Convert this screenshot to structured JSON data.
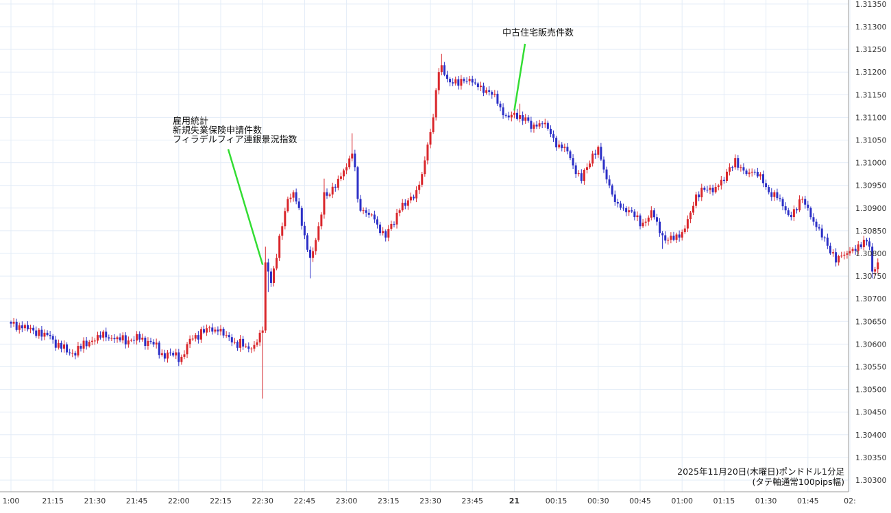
{
  "chart_data": {
    "type": "candlestick",
    "colors": {
      "up": "#d9262b",
      "down": "#2b2fc6",
      "grid": "#e3ecf7",
      "annotation_line": "#33dd33"
    },
    "y_axis": {
      "ylim": [
        1.3027,
        1.31335
      ],
      "ticks": [
        "1.30300",
        "1.30350",
        "1.30400",
        "1.30450",
        "1.30500",
        "1.30550",
        "1.30600",
        "1.30650",
        "1.30700",
        "1.30750",
        "1.30800",
        "1.30850",
        "1.30900",
        "1.30950",
        "1.31000",
        "1.31050",
        "1.31100",
        "1.31150",
        "1.31200",
        "1.31250",
        "1.31300",
        "1.31350"
      ]
    },
    "x_axis": {
      "ticks": [
        {
          "label": "1:00",
          "minute": 0
        },
        {
          "label": "21:15",
          "minute": 15
        },
        {
          "label": "21:30",
          "minute": 30
        },
        {
          "label": "21:45",
          "minute": 45
        },
        {
          "label": "22:00",
          "minute": 60
        },
        {
          "label": "22:15",
          "minute": 75
        },
        {
          "label": "22:30",
          "minute": 90
        },
        {
          "label": "22:45",
          "minute": 105
        },
        {
          "label": "23:00",
          "minute": 120
        },
        {
          "label": "23:15",
          "minute": 135
        },
        {
          "label": "23:30",
          "minute": 150
        },
        {
          "label": "23:45",
          "minute": 165
        },
        {
          "label": "21",
          "minute": 180,
          "bold": true
        },
        {
          "label": "00:15",
          "minute": 195
        },
        {
          "label": "00:30",
          "minute": 210
        },
        {
          "label": "00:45",
          "minute": 225
        },
        {
          "label": "01:00",
          "minute": 240
        },
        {
          "label": "01:15",
          "minute": 255
        },
        {
          "label": "01:30",
          "minute": 270
        },
        {
          "label": "01:45",
          "minute": 285
        },
        {
          "label": "02:",
          "minute": 300
        }
      ]
    },
    "annotations": [
      {
        "lines": [
          "雇用統計",
          "新規失業保険申請件数",
          "フィラデルフィア連銀景況指数"
        ],
        "minute": 90,
        "price": 1.30775
      },
      {
        "lines": [
          "中古住宅販売件数"
        ],
        "minute": 180,
        "price": 1.31115
      }
    ],
    "caption": {
      "line1": "2025年11月20日(木曜日)ポンドドル1分足",
      "line2": "(タテ軸通常100pips幅)"
    },
    "anchors": [
      [
        0,
        1.30645
      ],
      [
        4,
        1.30635
      ],
      [
        8,
        1.3063
      ],
      [
        12,
        1.30625
      ],
      [
        15,
        1.3061
      ],
      [
        18,
        1.3059
      ],
      [
        21,
        1.3058
      ],
      [
        25,
        1.3059
      ],
      [
        28,
        1.30605
      ],
      [
        31,
        1.3062
      ],
      [
        34,
        1.30615
      ],
      [
        38,
        1.30615
      ],
      [
        42,
        1.30608
      ],
      [
        46,
        1.3061
      ],
      [
        50,
        1.30605
      ],
      [
        54,
        1.3058
      ],
      [
        58,
        1.30575
      ],
      [
        61,
        1.30572
      ],
      [
        63,
        1.306
      ],
      [
        66,
        1.3062
      ],
      [
        70,
        1.30635
      ],
      [
        74,
        1.30628
      ],
      [
        77,
        1.3062
      ],
      [
        80,
        1.30605
      ],
      [
        84,
        1.30595
      ],
      [
        86,
        1.3059
      ],
      [
        87,
        1.30598
      ],
      [
        89,
        1.30625
      ],
      [
        90,
        1.3063
      ],
      [
        91,
        1.3078
      ],
      [
        92,
        1.3076
      ],
      [
        93,
        1.30735
      ],
      [
        95,
        1.3079
      ],
      [
        97,
        1.3086
      ],
      [
        99,
        1.3092
      ],
      [
        101,
        1.30935
      ],
      [
        103,
        1.309
      ],
      [
        105,
        1.3084
      ],
      [
        107,
        1.3079
      ],
      [
        108,
        1.30805
      ],
      [
        110,
        1.3086
      ],
      [
        112,
        1.30935
      ],
      [
        114,
        1.3093
      ],
      [
        116,
        1.30945
      ],
      [
        118,
        1.3097
      ],
      [
        120,
        1.3099
      ],
      [
        122,
        1.3102
      ],
      [
        123,
        1.3099
      ],
      [
        124,
        1.3092
      ],
      [
        126,
        1.30895
      ],
      [
        128,
        1.30885
      ],
      [
        130,
        1.30875
      ],
      [
        132,
        1.30845
      ],
      [
        134,
        1.30835
      ],
      [
        136,
        1.30865
      ],
      [
        139,
        1.30895
      ],
      [
        141,
        1.30905
      ],
      [
        143,
        1.30925
      ],
      [
        145,
        1.3094
      ],
      [
        147,
        1.30975
      ],
      [
        149,
        1.3104
      ],
      [
        151,
        1.311
      ],
      [
        152,
        1.3116
      ],
      [
        153,
        1.312
      ],
      [
        154,
        1.31215
      ],
      [
        156,
        1.31185
      ],
      [
        158,
        1.31175
      ],
      [
        160,
        1.3117
      ],
      [
        162,
        1.3118
      ],
      [
        164,
        1.31185
      ],
      [
        166,
        1.31175
      ],
      [
        168,
        1.3117
      ],
      [
        170,
        1.3116
      ],
      [
        172,
        1.3115
      ],
      [
        174,
        1.3113
      ],
      [
        176,
        1.31105
      ],
      [
        178,
        1.311
      ],
      [
        180,
        1.3111
      ],
      [
        182,
        1.31105
      ],
      [
        184,
        1.311
      ],
      [
        186,
        1.31075
      ],
      [
        188,
        1.3108
      ],
      [
        190,
        1.31085
      ],
      [
        192,
        1.31075
      ],
      [
        194,
        1.31055
      ],
      [
        196,
        1.3104
      ],
      [
        198,
        1.31035
      ],
      [
        200,
        1.3101
      ],
      [
        202,
        1.30975
      ],
      [
        204,
        1.3096
      ],
      [
        206,
        1.3099
      ],
      [
        208,
        1.3102
      ],
      [
        210,
        1.31035
      ],
      [
        212,
        1.30985
      ],
      [
        214,
        1.3095
      ],
      [
        215,
        1.3093
      ],
      [
        217,
        1.3091
      ],
      [
        219,
        1.309
      ],
      [
        221,
        1.30895
      ],
      [
        223,
        1.3088
      ],
      [
        225,
        1.3086
      ],
      [
        227,
        1.3087
      ],
      [
        229,
        1.30895
      ],
      [
        231,
        1.3087
      ],
      [
        233,
        1.3084
      ],
      [
        235,
        1.3083
      ],
      [
        237,
        1.3083
      ],
      [
        239,
        1.30835
      ],
      [
        241,
        1.30855
      ],
      [
        243,
        1.3089
      ],
      [
        245,
        1.3093
      ],
      [
        247,
        1.30945
      ],
      [
        249,
        1.3094
      ],
      [
        251,
        1.30935
      ],
      [
        253,
        1.3095
      ],
      [
        255,
        1.3096
      ],
      [
        257,
        1.3099
      ],
      [
        259,
        1.3101
      ],
      [
        261,
        1.3099
      ],
      [
        263,
        1.30975
      ],
      [
        265,
        1.3098
      ],
      [
        267,
        1.3097
      ],
      [
        269,
        1.30955
      ],
      [
        271,
        1.30935
      ],
      [
        273,
        1.30935
      ],
      [
        275,
        1.3092
      ],
      [
        277,
        1.30895
      ],
      [
        279,
        1.3088
      ],
      [
        281,
        1.30895
      ],
      [
        283,
        1.3092
      ],
      [
        285,
        1.309
      ],
      [
        287,
        1.3087
      ],
      [
        289,
        1.30855
      ],
      [
        291,
        1.30835
      ],
      [
        293,
        1.308
      ],
      [
        295,
        1.3078
      ],
      [
        297,
        1.30795
      ],
      [
        299,
        1.308
      ],
      [
        301,
        1.3081
      ],
      [
        303,
        1.3082
      ],
      [
        305,
        1.3083
      ],
      [
        307,
        1.30815
      ],
      [
        308,
        1.3076
      ],
      [
        309,
        1.30765
      ],
      [
        310,
        1.3078
      ]
    ],
    "spikes": [
      {
        "minute": 90,
        "low": 1.3048
      },
      {
        "minute": 91,
        "high": 1.30815
      },
      {
        "minute": 92,
        "low": 1.30715
      },
      {
        "minute": 107,
        "low": 1.30745
      },
      {
        "minute": 112,
        "high": 1.30965
      },
      {
        "minute": 122,
        "high": 1.31065
      },
      {
        "minute": 154,
        "high": 1.3124
      },
      {
        "minute": 182,
        "high": 1.3113
      },
      {
        "minute": 233,
        "low": 1.3081
      },
      {
        "minute": 308,
        "low": 1.30745
      }
    ]
  }
}
